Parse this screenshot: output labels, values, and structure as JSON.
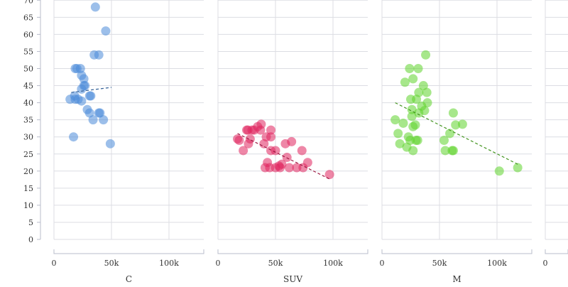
{
  "chart_data": [
    {
      "type": "scatter",
      "title": "C",
      "xlabel": "C",
      "ylabel": "",
      "xlim": [
        0,
        130000
      ],
      "ylim": [
        0,
        70
      ],
      "x_ticks": [
        "0",
        "50k",
        "100k"
      ],
      "color": "#4a8ad8",
      "points": [
        [
          36,
          68
        ],
        [
          45,
          61
        ],
        [
          35,
          54
        ],
        [
          39,
          54
        ],
        [
          18.5,
          50
        ],
        [
          20,
          50
        ],
        [
          23,
          50
        ],
        [
          24,
          48
        ],
        [
          26,
          47
        ],
        [
          26,
          45
        ],
        [
          27,
          45
        ],
        [
          24,
          44
        ],
        [
          14,
          41
        ],
        [
          18,
          42
        ],
        [
          18.5,
          41
        ],
        [
          21,
          41
        ],
        [
          24,
          40.5
        ],
        [
          32,
          42
        ],
        [
          31,
          42
        ],
        [
          29,
          38
        ],
        [
          31,
          37
        ],
        [
          39,
          37
        ],
        [
          40,
          37
        ],
        [
          34,
          35
        ],
        [
          43,
          35
        ],
        [
          17,
          30
        ],
        [
          49,
          28
        ]
      ],
      "trendline": [
        [
          15,
          43
        ],
        [
          50,
          44.5
        ]
      ]
    },
    {
      "type": "scatter",
      "title": "SUV",
      "xlabel": "SUV",
      "xlim": [
        0,
        130000
      ],
      "ylim": [
        0,
        70
      ],
      "x_ticks": [
        "0",
        "50k",
        "100k"
      ],
      "color": "#e0245e",
      "points": [
        [
          17,
          29.4
        ],
        [
          18.5,
          29
        ],
        [
          22,
          26
        ],
        [
          25,
          32
        ],
        [
          26,
          32
        ],
        [
          26.5,
          28
        ],
        [
          28,
          29.4
        ],
        [
          29.6,
          32
        ],
        [
          31.5,
          32
        ],
        [
          34.5,
          33
        ],
        [
          37,
          32
        ],
        [
          37.6,
          33.7
        ],
        [
          40,
          28
        ],
        [
          42,
          30
        ],
        [
          46,
          32
        ],
        [
          46,
          30
        ],
        [
          46,
          26
        ],
        [
          50,
          26
        ],
        [
          43,
          22.5
        ],
        [
          41,
          21
        ],
        [
          45,
          21
        ],
        [
          50,
          21
        ],
        [
          53,
          21.5
        ],
        [
          55.5,
          22
        ],
        [
          54,
          21
        ],
        [
          58.6,
          28
        ],
        [
          64,
          28.6
        ],
        [
          60,
          24
        ],
        [
          62,
          21
        ],
        [
          68.5,
          21
        ],
        [
          74,
          21
        ],
        [
          73,
          26
        ],
        [
          78,
          22.5
        ],
        [
          97,
          19
        ]
      ],
      "trendline": [
        [
          17,
          31
        ],
        [
          97.5,
          17.6
        ]
      ]
    },
    {
      "type": "scatter",
      "title": "M",
      "xlabel": "M",
      "xlim": [
        0,
        130000
      ],
      "ylim": [
        0,
        70
      ],
      "x_ticks": [
        "0",
        "50k",
        "100k"
      ],
      "color": "#5ed32b",
      "points": [
        [
          38,
          54
        ],
        [
          24,
          50
        ],
        [
          31.5,
          50
        ],
        [
          20,
          46
        ],
        [
          27,
          47
        ],
        [
          36,
          45
        ],
        [
          32,
          43
        ],
        [
          39,
          43
        ],
        [
          25,
          41
        ],
        [
          30,
          41
        ],
        [
          39.5,
          40
        ],
        [
          34.5,
          39
        ],
        [
          26,
          38
        ],
        [
          37,
          37.7
        ],
        [
          32,
          37
        ],
        [
          26,
          36
        ],
        [
          11.5,
          35
        ],
        [
          18.5,
          34
        ],
        [
          29,
          33.5
        ],
        [
          27,
          33
        ],
        [
          14,
          31
        ],
        [
          23,
          30
        ],
        [
          24.5,
          29
        ],
        [
          29.6,
          29
        ],
        [
          31,
          29
        ],
        [
          15.5,
          28
        ],
        [
          21.6,
          27
        ],
        [
          27,
          26
        ],
        [
          62,
          37
        ],
        [
          64,
          33.5
        ],
        [
          70,
          33.7
        ],
        [
          59,
          31
        ],
        [
          54,
          29
        ],
        [
          55,
          26
        ],
        [
          61,
          26
        ],
        [
          62,
          26
        ],
        [
          102,
          20
        ],
        [
          118,
          21
        ]
      ],
      "trendline": [
        [
          11.5,
          40
        ],
        [
          118,
          22
        ]
      ]
    },
    {
      "type": "scatter",
      "title": "",
      "xlim": [
        0,
        130000
      ],
      "ylim": [
        0,
        70
      ],
      "x_ticks": [
        "0"
      ],
      "points": []
    }
  ],
  "y_ticks": [
    "0",
    "5",
    "10",
    "15",
    "20",
    "25",
    "30",
    "35",
    "40",
    "45",
    "50",
    "55",
    "60",
    "65",
    "70"
  ]
}
